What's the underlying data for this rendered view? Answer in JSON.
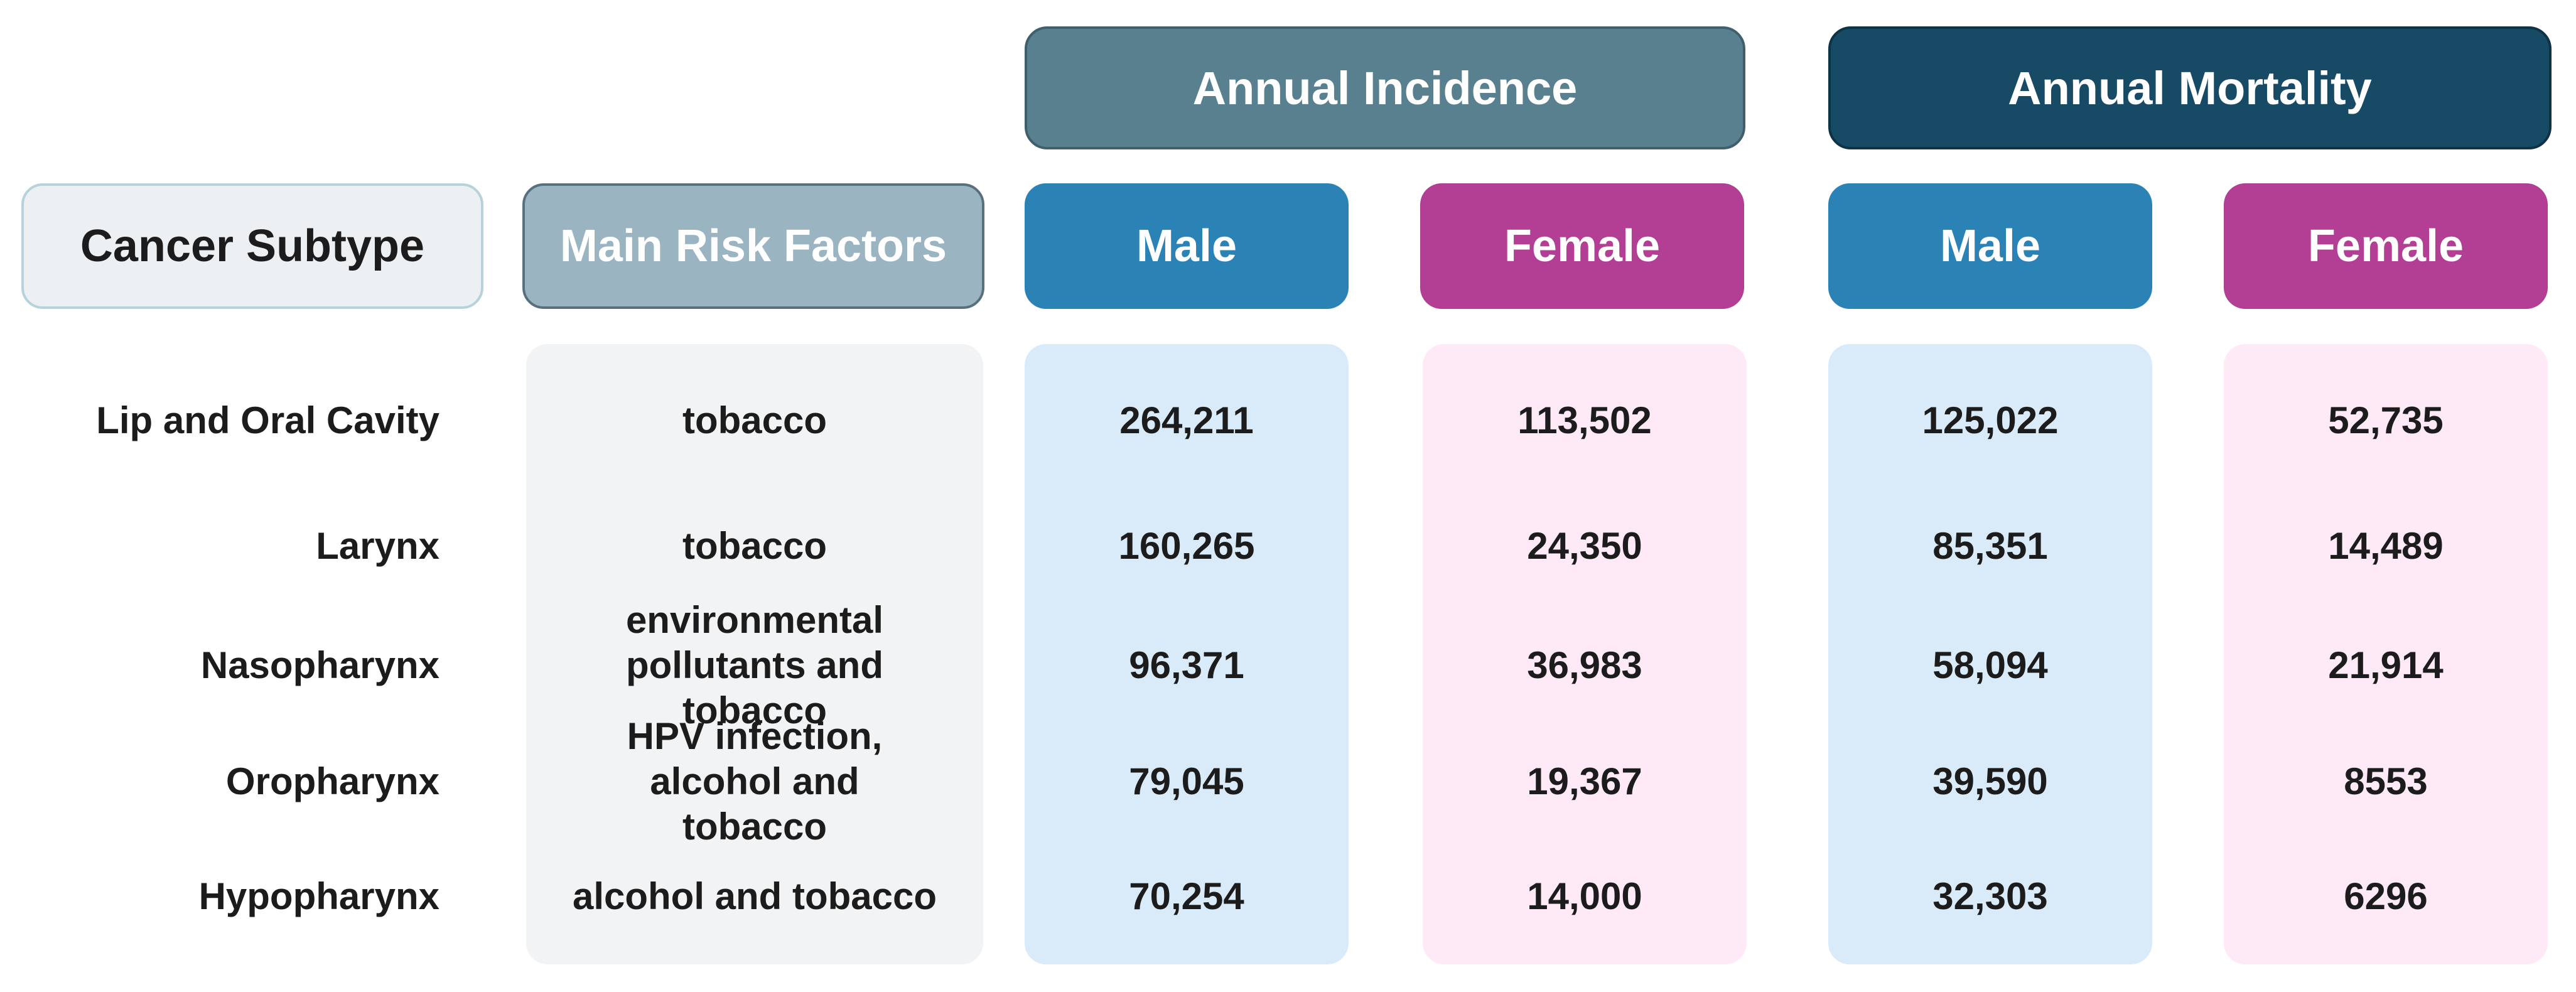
{
  "header": {
    "annual_incidence": "Annual Incidence",
    "annual_mortality": "Annual Mortality"
  },
  "columns": {
    "cancer_subtype": "Cancer Subtype",
    "main_risk_factors": "Main Risk Factors",
    "incidence_male": "Male",
    "incidence_female": "Female",
    "mortality_male": "Male",
    "mortality_female": "Female"
  },
  "rows": [
    {
      "subtype": "Lip and Oral Cavity",
      "risk": "tobacco",
      "inc_male": "264,211",
      "inc_female": "113,502",
      "mort_male": "125,022",
      "mort_female": "52,735"
    },
    {
      "subtype": "Larynx",
      "risk": "tobacco",
      "inc_male": "160,265",
      "inc_female": "24,350",
      "mort_male": "85,351",
      "mort_female": "14,489"
    },
    {
      "subtype": "Nasopharynx",
      "risk": "environmental pollutants and tobacco",
      "inc_male": "96,371",
      "inc_female": "36,983",
      "mort_male": "58,094",
      "mort_female": "21,914"
    },
    {
      "subtype": "Oropharynx",
      "risk": "HPV infection, alcohol and tobacco",
      "inc_male": "79,045",
      "inc_female": "19,367",
      "mort_male": "39,590",
      "mort_female": "8553"
    },
    {
      "subtype": "Hypopharynx",
      "risk": "alcohol and tobacco",
      "inc_male": "70,254",
      "inc_female": "14,000",
      "mort_male": "32,303",
      "mort_female": "6296"
    }
  ]
}
